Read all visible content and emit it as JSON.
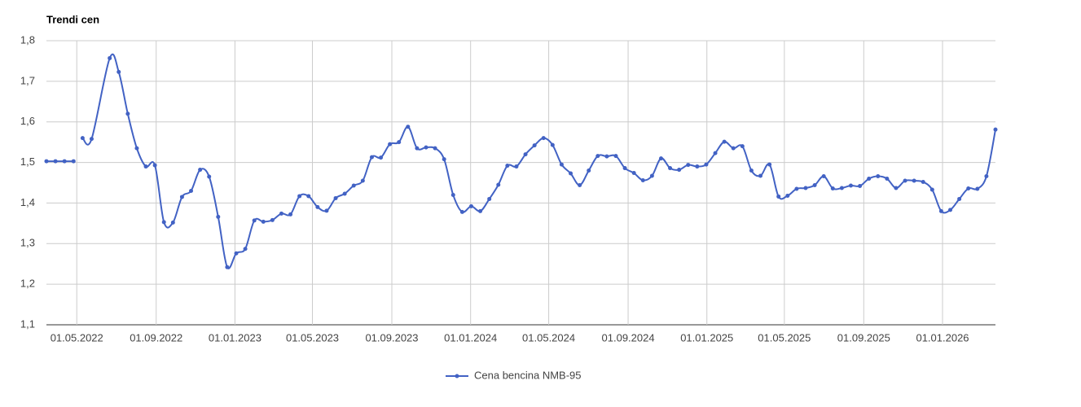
{
  "chart_data": {
    "type": "line",
    "title": "Trendi cen",
    "x": [
      "15.03.2022",
      "29.03.2022",
      "12.04.2022",
      "26.04.2022",
      "03.05.2022",
      "10.05.2022",
      "24.05.2022",
      "21.06.2022",
      "05.07.2022",
      "19.07.2022",
      "02.08.2022",
      "16.08.2022",
      "30.08.2022",
      "13.09.2022",
      "27.09.2022",
      "11.10.2022",
      "25.10.2022",
      "08.11.2022",
      "22.11.2022",
      "06.12.2022",
      "20.12.2022",
      "03.01.2023",
      "17.01.2023",
      "31.01.2023",
      "14.02.2023",
      "28.02.2023",
      "14.03.2023",
      "28.03.2023",
      "11.04.2023",
      "25.04.2023",
      "09.05.2023",
      "23.05.2023",
      "06.06.2023",
      "20.06.2023",
      "04.07.2023",
      "18.07.2023",
      "01.08.2023",
      "15.08.2023",
      "29.08.2023",
      "12.09.2023",
      "26.09.2023",
      "10.10.2023",
      "24.10.2023",
      "07.11.2023",
      "21.11.2023",
      "05.12.2023",
      "19.12.2023",
      "02.01.2024",
      "16.01.2024",
      "30.01.2024",
      "13.02.2024",
      "27.02.2024",
      "12.03.2024",
      "26.03.2024",
      "09.04.2024",
      "23.04.2024",
      "07.05.2024",
      "21.05.2024",
      "04.06.2024",
      "18.06.2024",
      "02.07.2024",
      "16.07.2024",
      "30.07.2024",
      "13.08.2024",
      "27.08.2024",
      "10.09.2024",
      "24.09.2024",
      "08.10.2024",
      "22.10.2024",
      "05.11.2024",
      "19.11.2024",
      "03.12.2024",
      "17.12.2024",
      "31.12.2024",
      "14.01.2025",
      "28.01.2025",
      "11.02.2025",
      "25.02.2025",
      "11.03.2025",
      "25.03.2025",
      "08.04.2025",
      "22.04.2025",
      "06.05.2025",
      "20.05.2025",
      "03.06.2025",
      "17.06.2025",
      "01.07.2025",
      "15.07.2025",
      "29.07.2025",
      "12.08.2025",
      "26.08.2025",
      "09.09.2025",
      "23.09.2025",
      "07.10.2025",
      "21.10.2025",
      "04.11.2025",
      "18.11.2025",
      "02.12.2025",
      "16.12.2025",
      "30.12.2025",
      "13.01.2026",
      "27.01.2026",
      "10.02.2026",
      "24.02.2026",
      "10.03.2026",
      "24.03.2026"
    ],
    "series": [
      {
        "name": "Cena bencina NMB-95",
        "color": "#4262c4",
        "values": [
          1.503,
          1.503,
          1.503,
          1.503,
          null,
          1.56,
          1.558,
          1.757,
          1.723,
          1.62,
          1.535,
          1.49,
          1.493,
          1.353,
          1.352,
          1.415,
          1.43,
          1.482,
          1.465,
          1.366,
          1.242,
          1.276,
          1.287,
          1.357,
          1.354,
          1.358,
          1.374,
          1.372,
          1.417,
          1.417,
          1.39,
          1.381,
          1.412,
          1.423,
          1.443,
          1.455,
          1.513,
          1.512,
          1.545,
          1.55,
          1.588,
          1.535,
          1.537,
          1.535,
          1.508,
          1.42,
          1.378,
          1.392,
          1.38,
          1.41,
          1.445,
          1.492,
          1.49,
          1.52,
          1.542,
          1.56,
          1.543,
          1.495,
          1.473,
          1.444,
          1.48,
          1.516,
          1.515,
          1.516,
          1.486,
          1.474,
          1.456,
          1.467,
          1.51,
          1.486,
          1.482,
          1.494,
          1.49,
          1.495,
          1.523,
          1.551,
          1.535,
          1.54,
          1.48,
          1.467,
          1.495,
          1.416,
          1.418,
          1.435,
          1.437,
          1.444,
          1.466,
          1.436,
          1.437,
          1.443,
          1.442,
          1.46,
          1.466,
          1.46,
          1.437,
          1.455,
          1.455,
          1.452,
          1.433,
          1.38,
          1.383,
          1.41,
          1.436,
          1.435,
          1.466,
          1.581
        ]
      }
    ],
    "xlim": [
      "15.03.2022",
      "24.03.2026"
    ],
    "xticks": [
      "01.05.2022",
      "01.09.2022",
      "01.01.2023",
      "01.05.2023",
      "01.09.2023",
      "01.01.2024",
      "01.05.2024",
      "01.09.2024",
      "01.01.2025",
      "01.05.2025",
      "01.09.2025",
      "01.01.2026"
    ],
    "ylim": [
      1.1,
      1.8
    ],
    "yticks": [
      {
        "value": 1.1,
        "label": "1,1"
      },
      {
        "value": 1.2,
        "label": "1,2"
      },
      {
        "value": 1.3,
        "label": "1,3"
      },
      {
        "value": 1.4,
        "label": "1,4"
      },
      {
        "value": 1.5,
        "label": "1,5"
      },
      {
        "value": 1.6,
        "label": "1,6"
      },
      {
        "value": 1.7,
        "label": "1,7"
      },
      {
        "value": 1.8,
        "label": "1,8"
      }
    ],
    "grid": true,
    "legend": "bottom"
  }
}
